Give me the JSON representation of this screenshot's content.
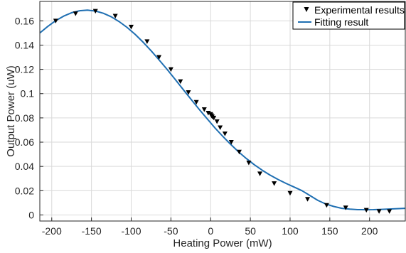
{
  "chart_data": {
    "type": "scatter",
    "xlabel": "Heating Power (mW)",
    "ylabel": "Output Power (uW)",
    "xlim": [
      -215,
      245
    ],
    "ylim": [
      -0.005,
      0.176
    ],
    "xticks": [
      -200,
      -150,
      -100,
      -50,
      0,
      50,
      100,
      150,
      200
    ],
    "yticks": [
      0,
      0.02,
      0.04,
      0.06,
      0.08,
      0.1,
      0.12,
      0.14,
      0.16
    ],
    "xtick_labels": [
      "-200",
      "-150",
      "-100",
      "-50",
      "0",
      "50",
      "100",
      "150",
      "200"
    ],
    "ytick_labels": [
      "0",
      "0.02",
      "0.04",
      "0.06",
      "0.08",
      "0.1",
      "0.12",
      "0.14",
      "0.16"
    ],
    "grid": true,
    "legend_position": "top-right",
    "series": [
      {
        "name": "Experimental results",
        "kind": "marker",
        "color": "#000000",
        "x": [
          -195,
          -170,
          -145,
          -120,
          -100,
          -80,
          -65,
          -50,
          -38,
          -28,
          -18,
          -8,
          -3,
          0,
          1,
          2,
          4,
          8,
          12,
          18,
          26,
          36,
          48,
          62,
          80,
          100,
          122,
          146,
          170,
          196,
          212,
          225
        ],
        "y": [
          0.16,
          0.166,
          0.168,
          0.164,
          0.155,
          0.143,
          0.13,
          0.12,
          0.11,
          0.101,
          0.093,
          0.087,
          0.084,
          0.083,
          0.082,
          0.081,
          0.08,
          0.077,
          0.072,
          0.067,
          0.06,
          0.052,
          0.043,
          0.034,
          0.026,
          0.018,
          0.013,
          0.008,
          0.006,
          0.004,
          0.003,
          0.003
        ]
      },
      {
        "name": "Fitting result",
        "kind": "line",
        "color": "#1f6fb2",
        "x": [
          -215,
          -205,
          -195,
          -185,
          -175,
          -165,
          -155,
          -145,
          -135,
          -125,
          -115,
          -105,
          -95,
          -85,
          -75,
          -65,
          -55,
          -45,
          -35,
          -25,
          -15,
          -5,
          5,
          15,
          25,
          35,
          45,
          55,
          65,
          75,
          85,
          95,
          105,
          115,
          125,
          135,
          145,
          155,
          165,
          175,
          185,
          195,
          205,
          215,
          225,
          235,
          245
        ],
        "y": [
          0.15,
          0.1554,
          0.1601,
          0.1639,
          0.1667,
          0.1683,
          0.1688,
          0.1681,
          0.1662,
          0.1633,
          0.1593,
          0.1545,
          0.1488,
          0.1424,
          0.1354,
          0.1279,
          0.1201,
          0.112,
          0.1038,
          0.0956,
          0.0875,
          0.0797,
          0.0721,
          0.065,
          0.0583,
          0.0521,
          0.0465,
          0.0414,
          0.0368,
          0.0328,
          0.0292,
          0.026,
          0.023,
          0.02,
          0.016,
          0.012,
          0.009,
          0.007,
          0.0055,
          0.0048,
          0.0044,
          0.0043,
          0.0044,
          0.0046,
          0.0049,
          0.0052,
          0.0055
        ]
      }
    ]
  }
}
